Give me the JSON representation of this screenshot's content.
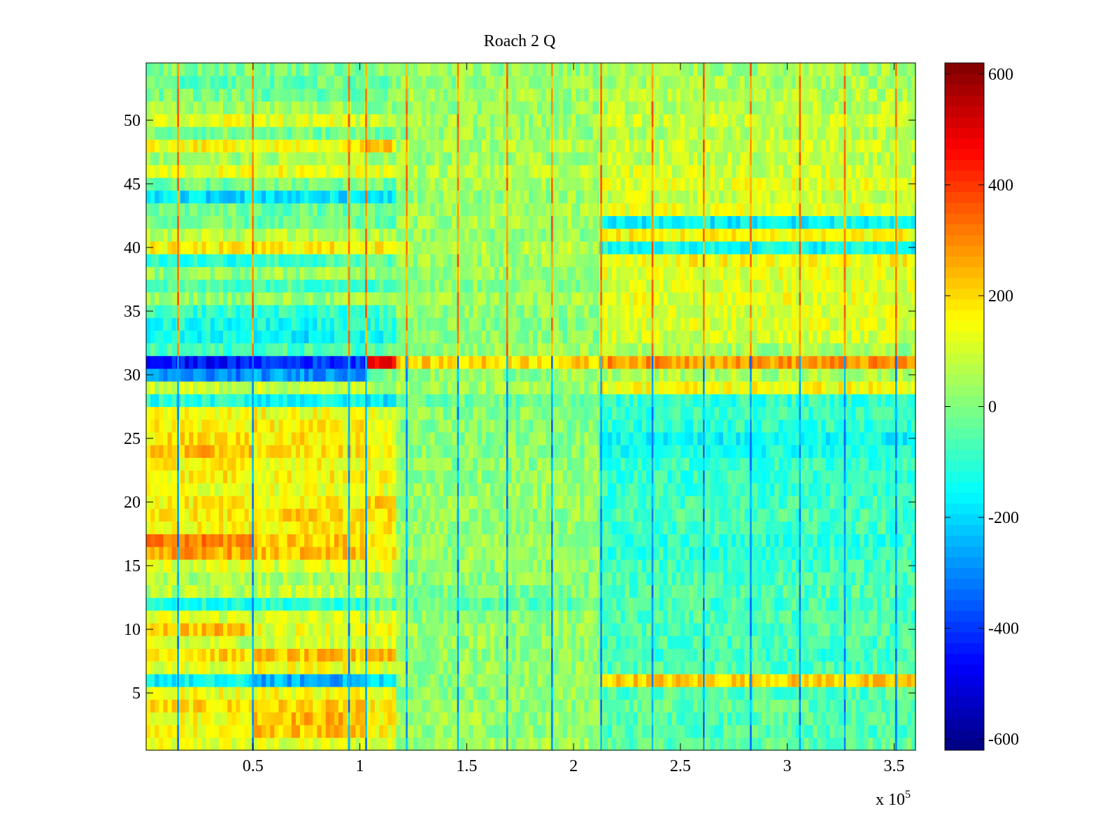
{
  "chart_data": {
    "type": "heatmap",
    "title": "Roach 2 Q",
    "xlabel": "",
    "ylabel": "",
    "x_exponent_label": "x 10",
    "x_exponent": "5",
    "xlim": [
      0,
      360000
    ],
    "ylim": [
      0.5,
      54.5
    ],
    "x_ticks": [
      50000,
      100000,
      150000,
      200000,
      250000,
      300000,
      350000
    ],
    "x_tick_labels": [
      "0.5",
      "1",
      "1.5",
      "2",
      "2.5",
      "3",
      "3.5"
    ],
    "y_ticks": [
      5,
      10,
      15,
      20,
      25,
      30,
      35,
      40,
      45,
      50
    ],
    "y_tick_labels": [
      "5",
      "10",
      "15",
      "20",
      "25",
      "30",
      "35",
      "40",
      "45",
      "50"
    ],
    "colormap": "jet",
    "clim": [
      -620,
      620
    ],
    "colorbar": {
      "ticks": [
        600,
        400,
        200,
        0,
        -200,
        -400,
        -600
      ],
      "tick_labels": [
        "600",
        "400",
        "200",
        "0",
        "-200",
        "-400",
        "-600"
      ]
    },
    "rows": 54,
    "segment_boundaries_x": [
      0,
      50000,
      103000,
      117000,
      212000,
      360000
    ],
    "segment_values_by_row": {
      "note_rows_1_to_54": "approximate mean value per row in each x segment",
      "seg1_0_50k": [
        120,
        160,
        150,
        190,
        140,
        -160,
        120,
        200,
        90,
        230,
        110,
        -120,
        60,
        50,
        110,
        260,
        300,
        150,
        170,
        160,
        130,
        170,
        160,
        230,
        190,
        160,
        140,
        -120,
        90,
        -300,
        -450,
        -80,
        -150,
        -130,
        -100,
        20,
        -60,
        20,
        -110,
        160,
        70,
        -30,
        -20,
        -190,
        -20,
        120,
        40,
        150,
        -10,
        120,
        40,
        -10,
        -40,
        0
      ],
      "seg2_50k_103k": [
        110,
        220,
        240,
        200,
        150,
        -250,
        140,
        220,
        100,
        130,
        100,
        -100,
        80,
        40,
        100,
        220,
        220,
        170,
        200,
        160,
        120,
        160,
        150,
        180,
        180,
        160,
        140,
        -150,
        80,
        -280,
        -400,
        -70,
        -170,
        -130,
        -100,
        30,
        -60,
        40,
        -80,
        170,
        60,
        -30,
        -30,
        -180,
        -10,
        130,
        50,
        160,
        -20,
        110,
        30,
        -40,
        -30,
        0
      ],
      "seg3_103k_117k": [
        100,
        160,
        170,
        160,
        160,
        -180,
        120,
        260,
        90,
        130,
        90,
        -40,
        60,
        30,
        110,
        170,
        170,
        160,
        190,
        200,
        120,
        150,
        140,
        170,
        160,
        150,
        130,
        -170,
        60,
        -20,
        500,
        -40,
        -140,
        -120,
        -90,
        40,
        -70,
        40,
        -40,
        160,
        50,
        -40,
        -40,
        -160,
        -30,
        130,
        40,
        210,
        -10,
        90,
        20,
        -20,
        -20,
        0
      ],
      "seg4_117k_212k": [
        40,
        20,
        30,
        20,
        20,
        20,
        30,
        20,
        30,
        30,
        20,
        -40,
        0,
        10,
        20,
        30,
        20,
        20,
        20,
        30,
        30,
        20,
        20,
        10,
        10,
        10,
        10,
        -20,
        40,
        20,
        200,
        30,
        10,
        10,
        20,
        40,
        10,
        30,
        30,
        60,
        20,
        40,
        40,
        30,
        40,
        60,
        40,
        50,
        30,
        40,
        30,
        40,
        20,
        30
      ],
      "seg5_212k_360k": [
        -40,
        -60,
        -50,
        -40,
        -60,
        210,
        -60,
        -80,
        -70,
        -60,
        -60,
        -70,
        -60,
        -70,
        -80,
        -90,
        -100,
        -80,
        -70,
        -80,
        -90,
        -90,
        -90,
        -120,
        -150,
        -100,
        -90,
        -100,
        150,
        50,
        280,
        40,
        100,
        110,
        110,
        120,
        110,
        120,
        150,
        -140,
        160,
        -160,
        120,
        90,
        120,
        100,
        80,
        90,
        60,
        90,
        70,
        60,
        50,
        40
      ]
    },
    "stripe_columns_x": [
      15000,
      50000,
      95000,
      103000,
      122000,
      146000,
      169000,
      190000,
      213000,
      237000,
      261000,
      283000,
      306000,
      327000,
      351000
    ],
    "stripe_polarity": {
      "note": "thin vertical stripes; upper rows (y>31) tend positive, lower rows negative",
      "upper_value": 350,
      "lower_value": -320
    }
  }
}
